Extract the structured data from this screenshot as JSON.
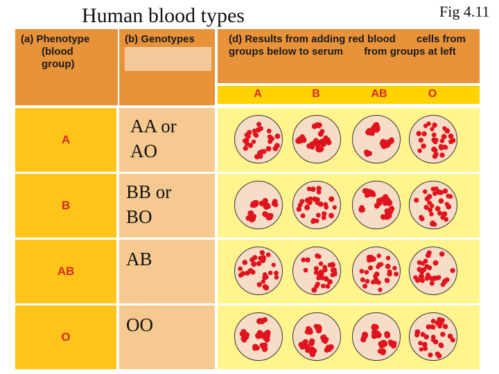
{
  "title": "Human blood types",
  "figure_label": "Fig 4.11",
  "headers": {
    "phenotype_lines": [
      "(a) Phenotype",
      "(blood",
      "group)"
    ],
    "genotypes": "(b) Genotypes",
    "results_lines": [
      "(d) Results from adding red blood",
      "cells from groups below to serum",
      "from groups at left"
    ]
  },
  "result_columns": [
    "A",
    "B",
    "AB",
    "O"
  ],
  "rows": [
    {
      "phenotype": "A",
      "genotype_lines": [
        "AA or",
        "AO"
      ],
      "results": [
        "uniform",
        "clumped",
        "clumped",
        "uniform"
      ]
    },
    {
      "phenotype": "B",
      "genotype_lines": [
        "BB or",
        "BO"
      ],
      "results": [
        "clumped",
        "uniform",
        "clumped",
        "uniform"
      ]
    },
    {
      "phenotype": "AB",
      "genotype_lines": [
        "AB"
      ],
      "results": [
        "uniform",
        "uniform",
        "uniform",
        "uniform"
      ]
    },
    {
      "phenotype": "O",
      "genotype_lines": [
        "OO"
      ],
      "results": [
        "clumped",
        "clumped",
        "clumped",
        "uniform"
      ]
    }
  ],
  "colors": {
    "cell": "#e0141e",
    "header": "#e8923a",
    "phenotype_bg": "#ffc41a",
    "genotype_bg": "#f5c98f",
    "results_bg": "#fff58c",
    "dish": "#f5ddc7"
  }
}
